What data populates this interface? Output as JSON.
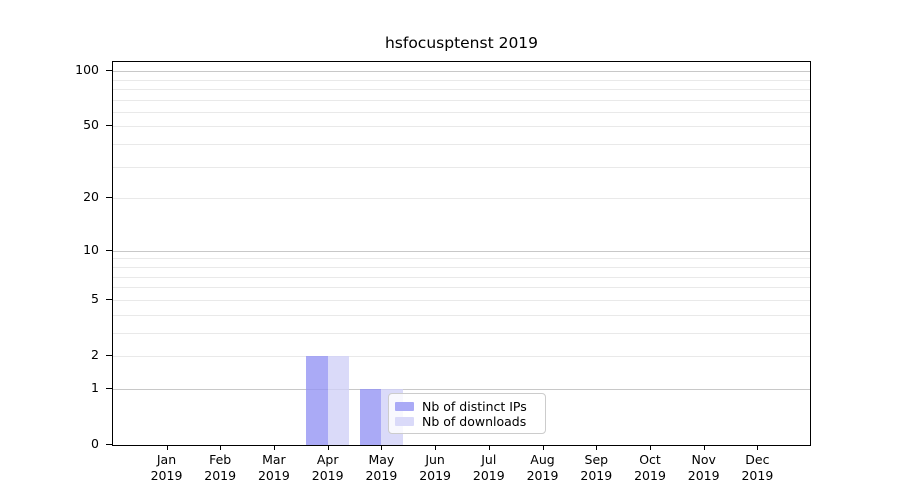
{
  "chart_data": {
    "type": "bar",
    "title": "hsfocusptenst 2019",
    "xlabel": "",
    "ylabel": "",
    "categories": [
      "Jan",
      "Feb",
      "Mar",
      "Apr",
      "May",
      "Jun",
      "Jul",
      "Aug",
      "Sep",
      "Oct",
      "Nov",
      "Dec"
    ],
    "x_year": "2019",
    "series": [
      {
        "name": "Nb of distinct IPs",
        "color": "rgba(149,149,244,0.8)",
        "legend_color": "#aaaaf6",
        "values": [
          0,
          0,
          0,
          2,
          1,
          0,
          0,
          0,
          0,
          0,
          0,
          0
        ]
      },
      {
        "name": "Nb of downloads",
        "color": "rgba(209,209,247,0.8)",
        "legend_color": "#dadaf9",
        "values": [
          0,
          0,
          0,
          2,
          1,
          0,
          0,
          0,
          0,
          0,
          0,
          0
        ]
      }
    ],
    "y_ticks": [
      0,
      1,
      2,
      5,
      10,
      20,
      50,
      100
    ],
    "minor_gridlines": [
      2,
      3,
      4,
      5,
      6,
      7,
      8,
      9,
      20,
      30,
      40,
      50,
      60,
      70,
      80,
      90
    ],
    "major_gridlines": [
      1,
      10,
      100
    ],
    "y_scale": "log10(value+1)",
    "ylim": [
      0,
      112
    ],
    "grid": true,
    "legend_position": "lower center-left inside plot"
  },
  "colors": {
    "background": "#ffffff",
    "axis": "#000000",
    "major_grid": "#c8c8c8",
    "minor_grid": "#e9e9e9",
    "legend_border": "#cccccc",
    "bar_dark": "#aaaaf6",
    "bar_light": "#dadaf9"
  }
}
